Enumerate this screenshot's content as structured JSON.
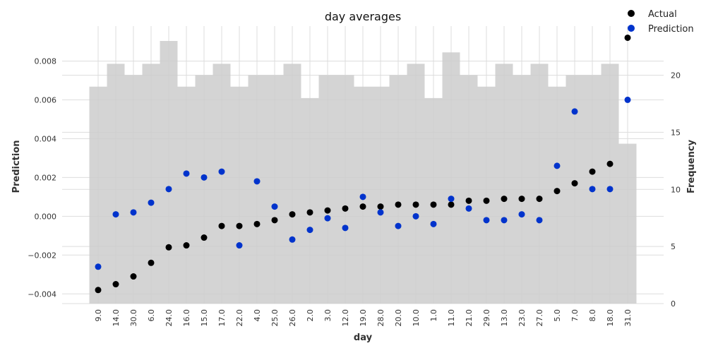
{
  "chart_data": {
    "type": "scatter",
    "title": "day averages",
    "xlabel": "day",
    "ylabel": "Prediction",
    "y2label": "Frequency",
    "categories": [
      "9.0",
      "14.0",
      "30.0",
      "6.0",
      "24.0",
      "16.0",
      "15.0",
      "17.0",
      "22.0",
      "4.0",
      "25.0",
      "26.0",
      "2.0",
      "3.0",
      "12.0",
      "19.0",
      "28.0",
      "20.0",
      "10.0",
      "1.0",
      "11.0",
      "21.0",
      "29.0",
      "13.0",
      "23.0",
      "27.0",
      "5.0",
      "7.0",
      "8.0",
      "18.0",
      "31.0"
    ],
    "series": [
      {
        "name": "Actual",
        "color": "#000000",
        "values": [
          -0.0038,
          -0.0035,
          -0.0031,
          -0.0024,
          -0.0016,
          -0.0015,
          -0.0011,
          -0.0005,
          -0.0005,
          -0.0004,
          -0.0002,
          0.0001,
          0.0002,
          0.0003,
          0.0004,
          0.0005,
          0.0005,
          0.0006,
          0.0006,
          0.0006,
          0.0006,
          0.0008,
          0.0008,
          0.0009,
          0.0009,
          0.0009,
          0.0013,
          0.0017,
          0.0023,
          0.0027,
          0.0092
        ]
      },
      {
        "name": "Prediction",
        "color": "#0033cc",
        "values": [
          -0.0026,
          0.0001,
          0.0002,
          0.0007,
          0.0014,
          0.0022,
          0.002,
          0.0023,
          -0.0015,
          0.0018,
          0.0005,
          -0.0012,
          -0.0007,
          -0.0001,
          -0.0006,
          0.001,
          0.0002,
          -0.0005,
          0.0,
          -0.0004,
          0.0009,
          0.0004,
          -0.0002,
          -0.0002,
          0.0001,
          -0.0002,
          0.0026,
          0.0054,
          0.0014,
          0.0014,
          0.006
        ]
      }
    ],
    "frequency": [
      19,
      21,
      20,
      21,
      23,
      19,
      20,
      21,
      19,
      20,
      20,
      21,
      18,
      20,
      20,
      19,
      19,
      20,
      21,
      18,
      22,
      20,
      19,
      21,
      20,
      21,
      19,
      20,
      20,
      21,
      14
    ],
    "ylim": [
      -0.0045,
      0.0098
    ],
    "y2lim": [
      0,
      24.3
    ],
    "yticks": [
      -0.004,
      -0.002,
      0.0,
      0.002,
      0.004,
      0.006,
      0.008
    ],
    "ytick_labels": [
      "−0.004",
      "−0.002",
      "0.000",
      "0.002",
      "0.004",
      "0.006",
      "0.008"
    ],
    "y2ticks": [
      0,
      5,
      10,
      15,
      20
    ],
    "y2tick_labels": [
      "0",
      "5",
      "10",
      "15",
      "20"
    ],
    "grid": true,
    "legend_position": "top-right",
    "bar_color": "#cccccc",
    "grid_color": "#dddddd"
  }
}
